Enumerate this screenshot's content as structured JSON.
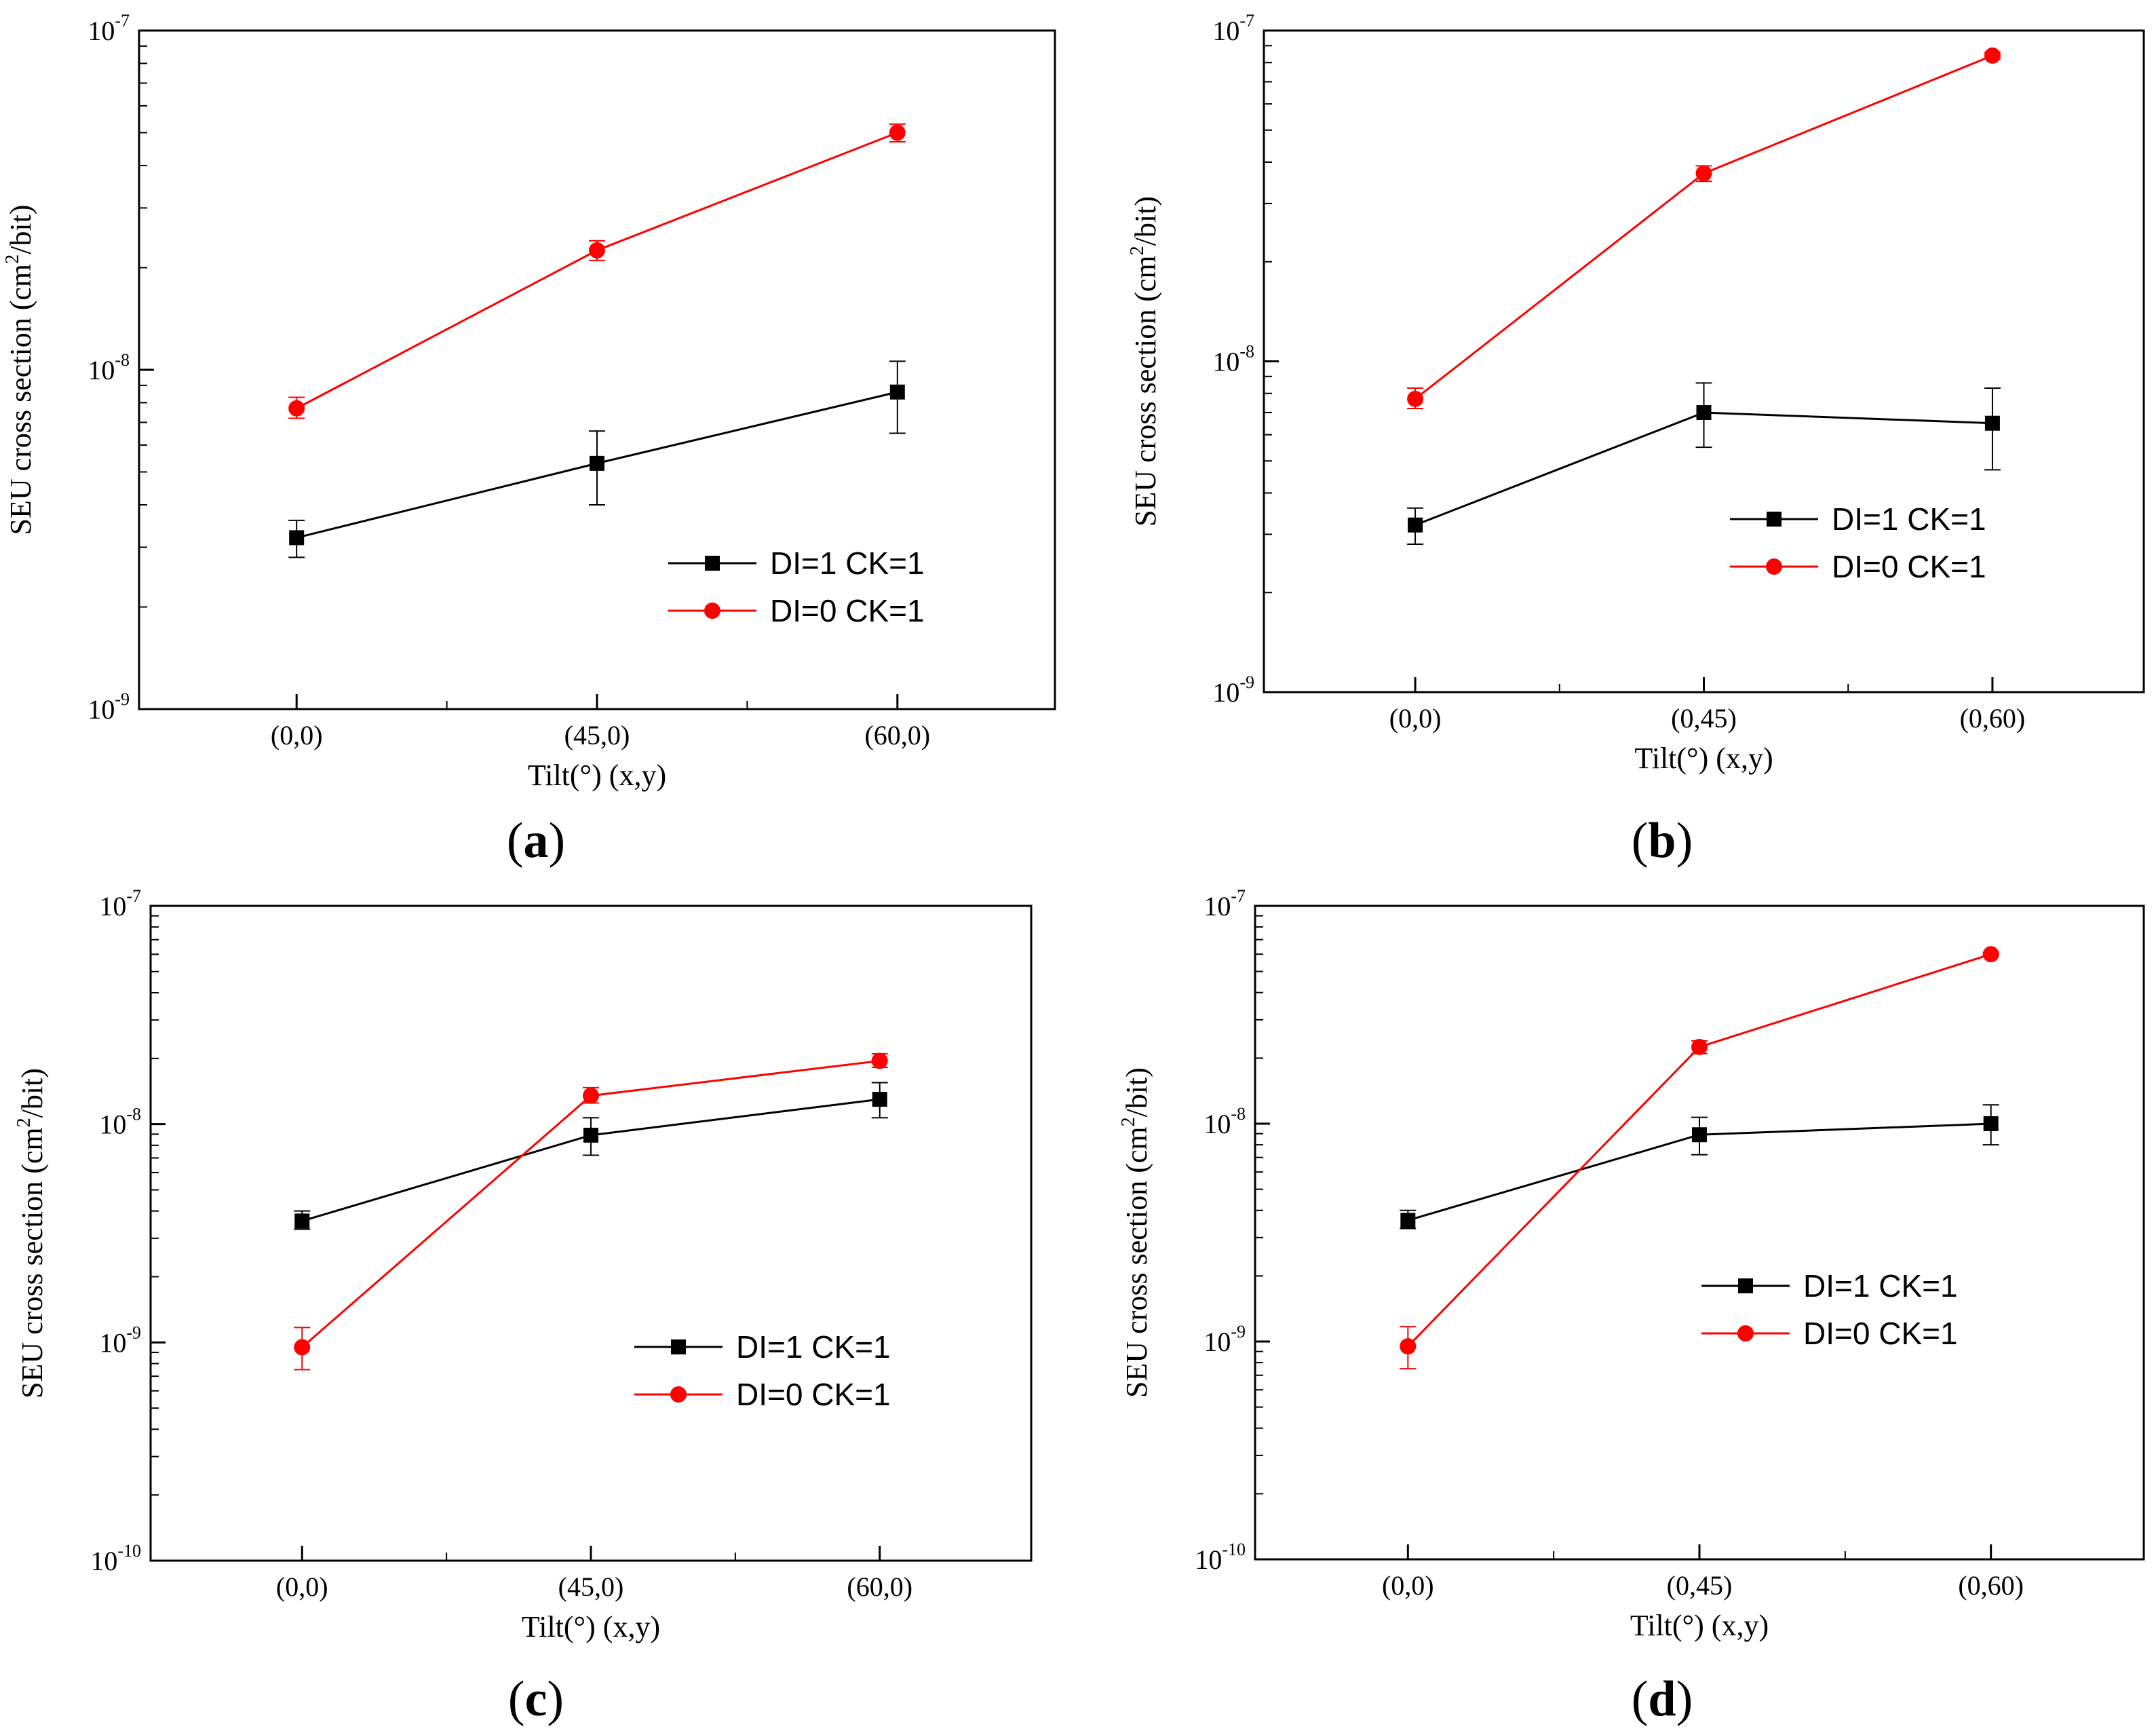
{
  "figure": {
    "panel_labels": [
      "(a)",
      "(b)",
      "(c)",
      "(d)"
    ]
  },
  "colors": {
    "series_black": "#000000",
    "series_red": "#ff0000"
  },
  "chart_data": [
    {
      "type": "line",
      "panel": "a",
      "yscale": "log",
      "ylim": [
        1e-09,
        1e-07
      ],
      "ytick_exponents": [
        -7,
        -8,
        -9
      ],
      "categories": [
        "(0,0)",
        "(45,0)",
        "(60,0)"
      ],
      "xlabel": "Tilt(°) (x,y)",
      "ylabel": "SEU cross section (cm",
      "ylabel_sup": "2",
      "ylabel_end": "/bit)",
      "legend_position": "center-right",
      "series": [
        {
          "name": "DI=1 CK=1",
          "color": "#000000",
          "marker": "square",
          "values": [
            3.2e-09,
            5.3e-09,
            8.6e-09
          ],
          "err_low": [
            2.8e-09,
            4e-09,
            6.5e-09
          ],
          "err_high": [
            3.6e-09,
            6.6e-09,
            1.06e-08
          ]
        },
        {
          "name": "DI=0 CK=1",
          "color": "#ff0000",
          "marker": "circle",
          "values": [
            7.7e-09,
            2.25e-08,
            5e-08
          ],
          "err_low": [
            7.2e-09,
            2.1e-08,
            4.7e-08
          ],
          "err_high": [
            8.3e-09,
            2.4e-08,
            5.3e-08
          ]
        }
      ]
    },
    {
      "type": "line",
      "panel": "b",
      "yscale": "log",
      "ylim": [
        1e-09,
        1e-07
      ],
      "ytick_exponents": [
        -7,
        -8,
        -9
      ],
      "categories": [
        "(0,0)",
        "(0,45)",
        "(0,60)"
      ],
      "xlabel": "Tilt(°) (x,y)",
      "ylabel": "SEU cross section (cm",
      "ylabel_sup": "2",
      "ylabel_end": "/bit)",
      "legend_position": "center-right",
      "series": [
        {
          "name": "DI=1 CK=1",
          "color": "#000000",
          "marker": "square",
          "values": [
            3.2e-09,
            7e-09,
            6.5e-09
          ],
          "err_low": [
            2.8e-09,
            5.5e-09,
            4.7e-09
          ],
          "err_high": [
            3.6e-09,
            8.6e-09,
            8.3e-09
          ]
        },
        {
          "name": "DI=0 CK=1",
          "color": "#ff0000",
          "marker": "circle",
          "values": [
            7.7e-09,
            3.7e-08,
            8.4e-08
          ],
          "err_low": [
            7.2e-09,
            3.5e-08,
            8.2e-08
          ],
          "err_high": [
            8.3e-09,
            3.9e-08,
            8.6e-08
          ]
        }
      ]
    },
    {
      "type": "line",
      "panel": "c",
      "yscale": "log",
      "ylim": [
        1e-10,
        1e-07
      ],
      "ytick_exponents": [
        -7,
        -8,
        -9,
        -10
      ],
      "categories": [
        "(0,0)",
        "(45,0)",
        "(60,0)"
      ],
      "xlabel": "Tilt(°) (x,y)",
      "ylabel": "SEU cross section (cm",
      "ylabel_sup": "2",
      "ylabel_end": "/bit)",
      "legend_position": "center-right",
      "series": [
        {
          "name": "DI=1 CK=1",
          "color": "#000000",
          "marker": "square",
          "values": [
            3.6e-09,
            8.9e-09,
            1.3e-08
          ],
          "err_low": [
            3.3e-09,
            7.2e-09,
            1.07e-08
          ],
          "err_high": [
            4e-09,
            1.07e-08,
            1.55e-08
          ]
        },
        {
          "name": "DI=0 CK=1",
          "color": "#ff0000",
          "marker": "circle",
          "values": [
            9.5e-10,
            1.35e-08,
            1.95e-08
          ],
          "err_low": [
            7.5e-10,
            1.25e-08,
            1.82e-08
          ],
          "err_high": [
            1.17e-09,
            1.47e-08,
            2.1e-08
          ]
        }
      ]
    },
    {
      "type": "line",
      "panel": "d",
      "yscale": "log",
      "ylim": [
        1e-10,
        1e-07
      ],
      "ytick_exponents": [
        -7,
        -8,
        -9,
        -10
      ],
      "categories": [
        "(0,0)",
        "(0,45)",
        "(0,60)"
      ],
      "xlabel": "Tilt(°) (x,y)",
      "ylabel": "SEU cross section (cm",
      "ylabel_sup": "2",
      "ylabel_end": "/bit)",
      "legend_position": "center-right",
      "series": [
        {
          "name": "DI=1 CK=1",
          "color": "#000000",
          "marker": "square",
          "values": [
            3.6e-09,
            8.9e-09,
            1e-08
          ],
          "err_low": [
            3.3e-09,
            7.2e-09,
            8e-09
          ],
          "err_high": [
            4e-09,
            1.07e-08,
            1.22e-08
          ]
        },
        {
          "name": "DI=0 CK=1",
          "color": "#ff0000",
          "marker": "circle",
          "values": [
            9.5e-10,
            2.25e-08,
            6e-08
          ],
          "err_low": [
            7.5e-10,
            2.1e-08,
            5.9e-08
          ],
          "err_high": [
            1.17e-09,
            2.4e-08,
            6.1e-08
          ]
        }
      ]
    }
  ]
}
